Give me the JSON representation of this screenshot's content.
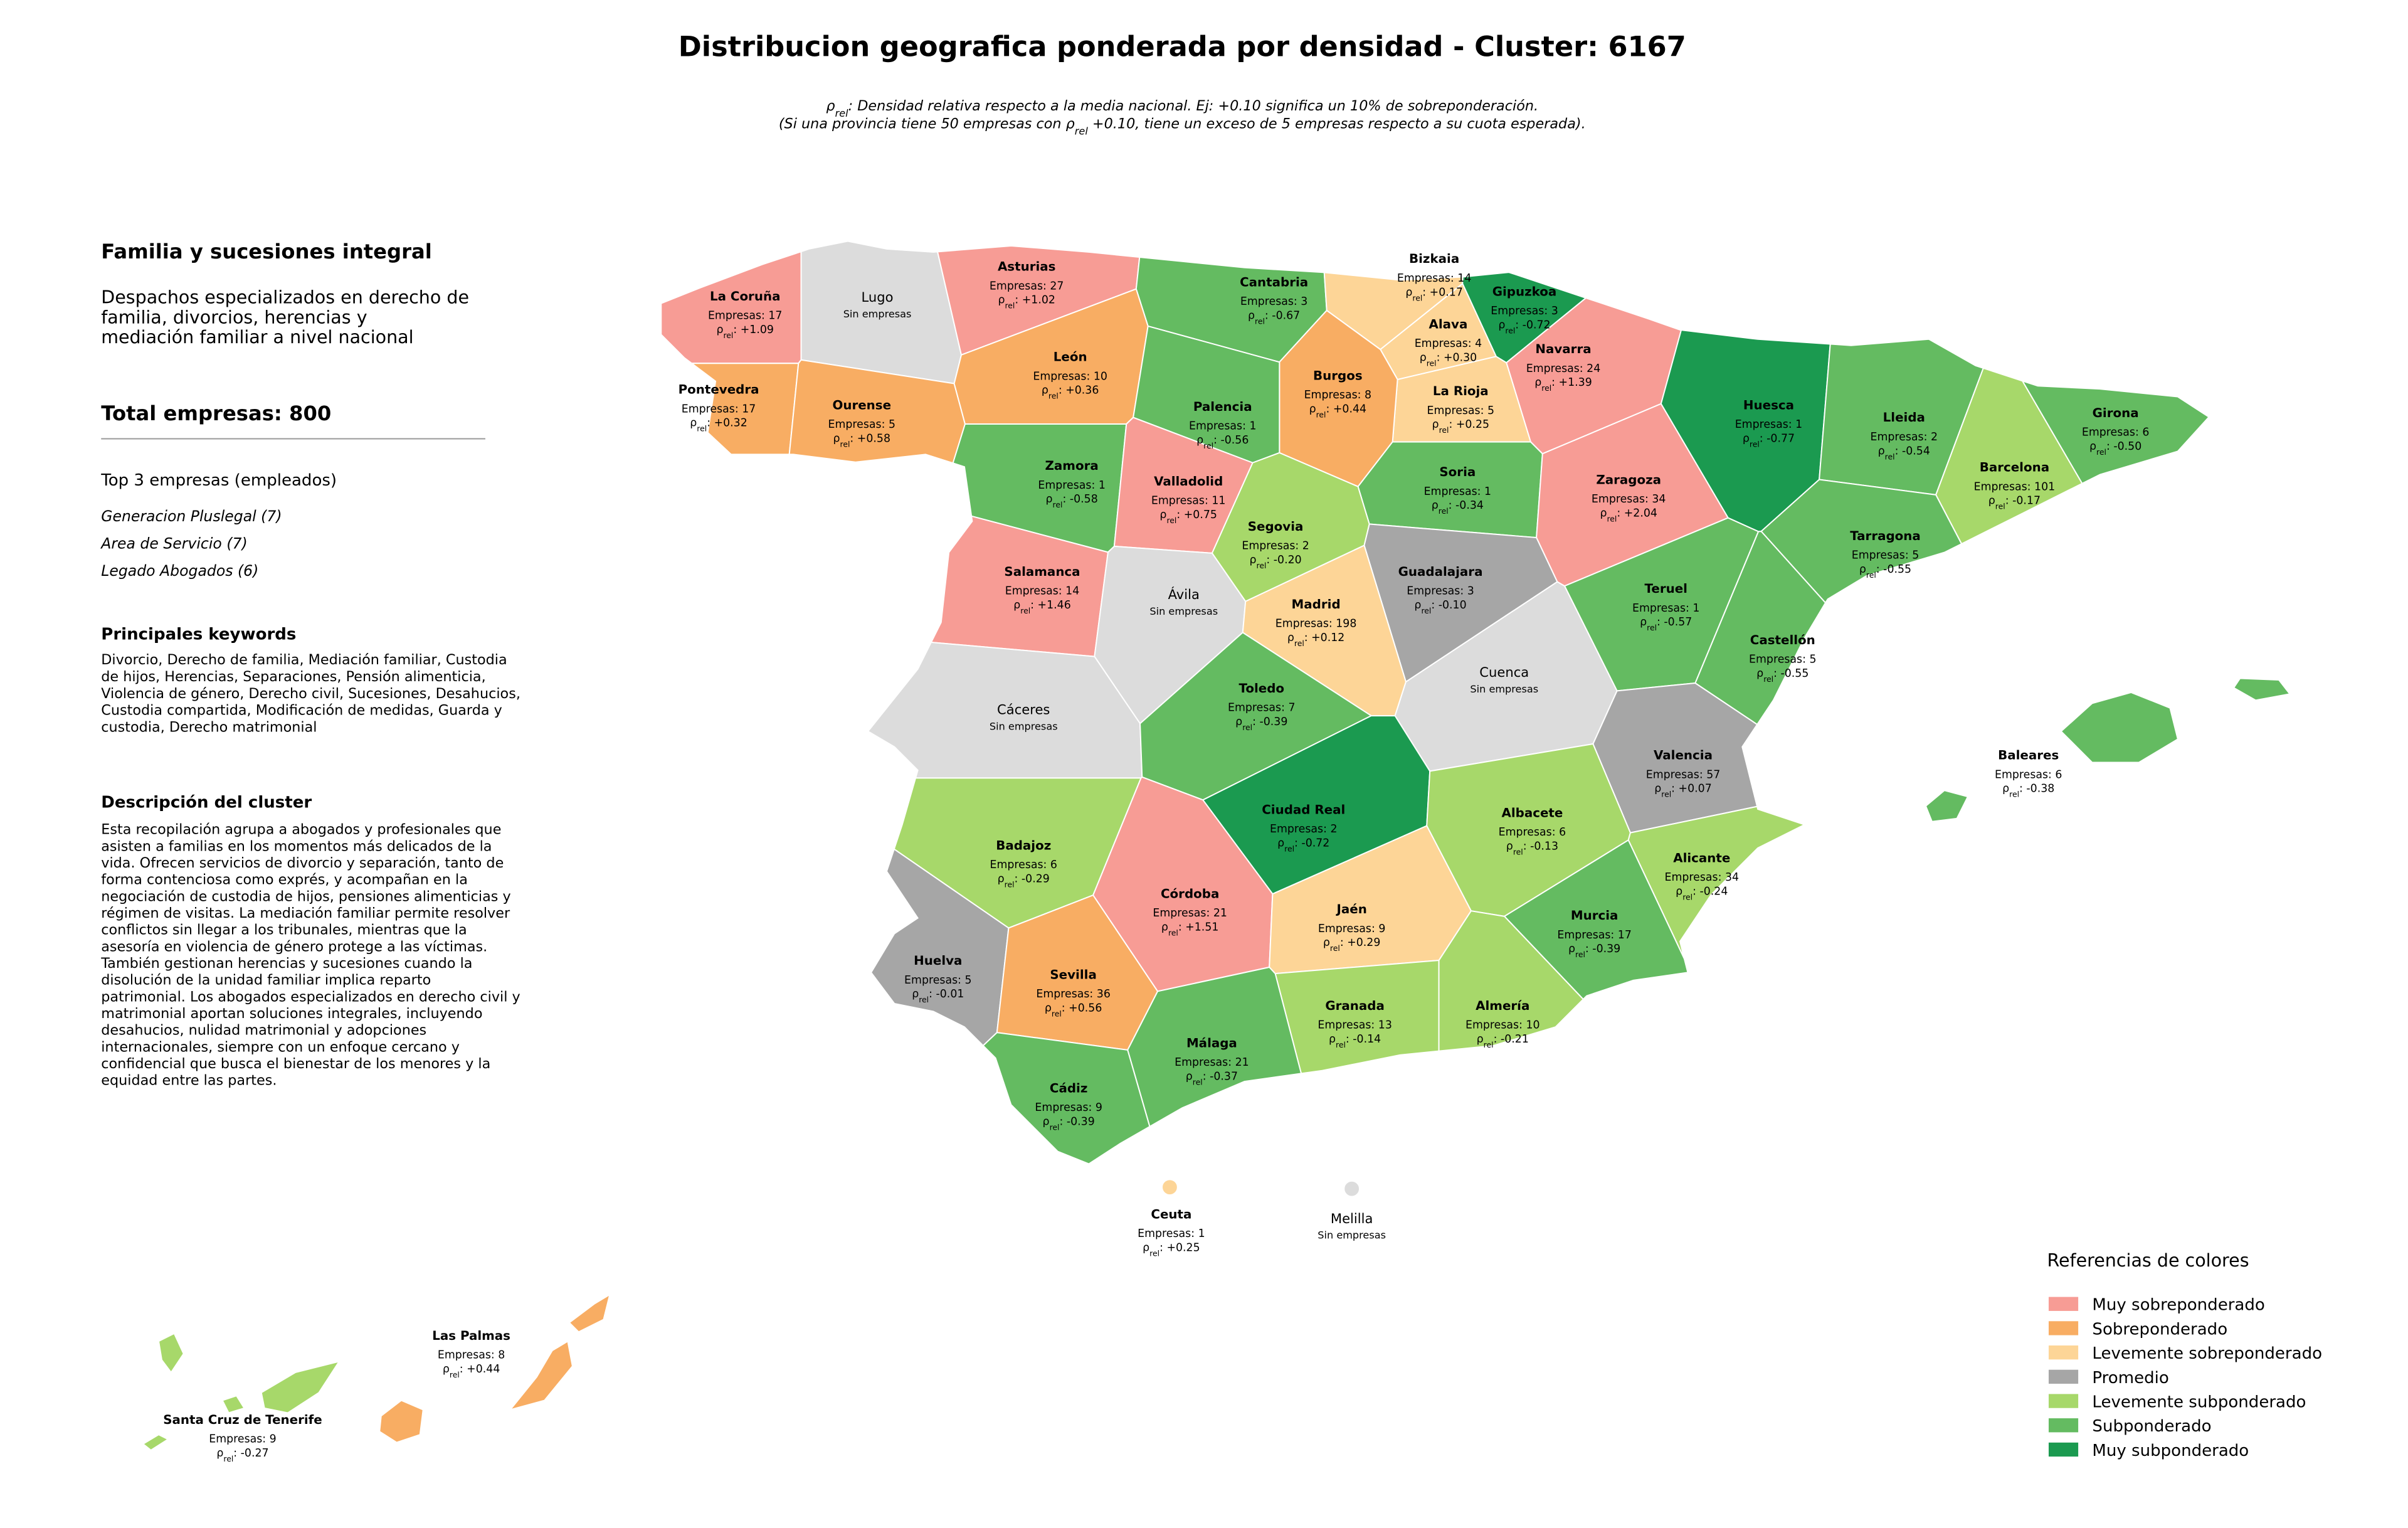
{
  "title": "Distribucion geografica ponderada por densidad - Cluster: 6167",
  "subtitle": [
    [
      "ρ",
      "rel",
      ": Densidad relativa respecto a la media nacional. Ej: +0.10 significa un 10% de sobreponderación."
    ],
    [
      "(Si una provincia tiene 50 empresas con ρ",
      "rel",
      " +0.10, tiene un exceso de 5 empresas respecto a su cuota esperada)."
    ]
  ],
  "panel": {
    "heading": "Familia y sucesiones integral",
    "summary": [
      "Despachos especializados en derecho de",
      "familia, divorcios, herencias y",
      "mediación familiar a nivel nacional"
    ],
    "total": "Total empresas: 800",
    "top_title": "Top 3 empresas (empleados)",
    "top": [
      "Generacion Pluslegal (7)",
      "Area de Servicio (7)",
      "Legado Abogados (6)"
    ],
    "keywords_title": "Principales keywords",
    "keywords": [
      "Divorcio, Derecho de familia, Mediación familiar, Custodia",
      "de hijos, Herencias, Separaciones, Pensión alimenticia,",
      "Violencia de género, Derecho civil, Sucesiones, Desahucios,",
      "Custodia compartida, Modificación de medidas, Guarda y",
      "custodia, Derecho matrimonial"
    ],
    "description_title": "Descripción del cluster",
    "description": [
      "Esta recopilación agrupa a abogados y profesionales que",
      "asisten a familias en los momentos más delicados de la",
      "vida. Ofrecen servicios de divorcio y separación, tanto de",
      "forma contenciosa como exprés, y acompañan en la",
      "negociación de custodia de hijos, pensiones alimenticias y",
      "régimen de visitas. La mediación familiar permite resolver",
      "conflictos sin llegar a los tribunales, mientras que la",
      "asesoría en violencia de género protege a las víctimas.",
      "También gestionan herencias y sucesiones cuando la",
      "disolución de la unidad familiar implica reparto",
      "patrimonial. Los abogados especializados en derecho civil y",
      "matrimonial aportan soluciones integrales, incluyendo",
      "desahucios, nulidad matrimonial y adopciones",
      "internacionales, siempre con un enfoque cercano y",
      "confidencial que busca el bienestar de los menores y la",
      "equidad entre las partes."
    ]
  },
  "legend": {
    "title": "Referencias de colores",
    "items": [
      {
        "label": "Muy sobreponderado",
        "color": "#f79c95"
      },
      {
        "label": "Sobreponderado",
        "color": "#f8ad63"
      },
      {
        "label": "Levemente sobreponderado",
        "color": "#fdd597"
      },
      {
        "label": "Promedio",
        "color": "#a6a6a6"
      },
      {
        "label": "Levemente subponderado",
        "color": "#a7d86a"
      },
      {
        "label": "Subponderado",
        "color": "#64bb61"
      },
      {
        "label": "Muy subponderado",
        "color": "#1b9a50"
      }
    ]
  },
  "map": {
    "rho_symbol": "ρ",
    "rho_subscript": "rel",
    "provinces": [
      {
        "name": "La Coruña",
        "empresas": "Empresas: 17",
        "rho": ": +1.09",
        "level": "Muy sobreponderado"
      },
      {
        "name": "Lugo",
        "note": "Sin empresas"
      },
      {
        "name": "Asturias",
        "empresas": "Empresas: 27",
        "rho": ": +1.02",
        "level": "Muy sobreponderado"
      },
      {
        "name": "Cantabria",
        "empresas": "Empresas: 3",
        "rho": ": -0.67",
        "level": "Subponderado"
      },
      {
        "name": "Bizkaia",
        "empresas": "Empresas: 14",
        "rho": ": +0.17",
        "level": "Levemente sobreponderado"
      },
      {
        "name": "Gipuzkoa",
        "empresas": "Empresas: 3",
        "rho": ": -0.72",
        "level": "Muy subponderado"
      },
      {
        "name": "Alava",
        "empresas": "Empresas: 4",
        "rho": ": +0.30",
        "level": "Levemente sobreponderado"
      },
      {
        "name": "Navarra",
        "empresas": "Empresas: 24",
        "rho": ": +1.39",
        "level": "Muy sobreponderado"
      },
      {
        "name": "La Rioja",
        "empresas": "Empresas: 5",
        "rho": ": +0.25",
        "level": "Levemente sobreponderado"
      },
      {
        "name": "Pontevedra",
        "empresas": "Empresas: 17",
        "rho": ": +0.32",
        "level": "Sobreponderado"
      },
      {
        "name": "Ourense",
        "empresas": "Empresas: 5",
        "rho": ": +0.58",
        "level": "Sobreponderado"
      },
      {
        "name": "León",
        "empresas": "Empresas: 10",
        "rho": ": +0.36",
        "level": "Sobreponderado"
      },
      {
        "name": "Burgos",
        "empresas": "Empresas: 8",
        "rho": ": +0.44",
        "level": "Sobreponderado"
      },
      {
        "name": "Palencia",
        "empresas": "Empresas: 1",
        "rho": ": -0.56",
        "level": "Subponderado"
      },
      {
        "name": "Huesca",
        "empresas": "Empresas: 1",
        "rho": ": -0.77",
        "level": "Muy subponderado"
      },
      {
        "name": "Lleida",
        "empresas": "Empresas: 2",
        "rho": ": -0.54",
        "level": "Subponderado"
      },
      {
        "name": "Girona",
        "empresas": "Empresas: 6",
        "rho": ": -0.50",
        "level": "Subponderado"
      },
      {
        "name": "Barcelona",
        "empresas": "Empresas: 101",
        "rho": ": -0.17",
        "level": "Levemente subponderado"
      },
      {
        "name": "Zamora",
        "empresas": "Empresas: 1",
        "rho": ": -0.58",
        "level": "Subponderado"
      },
      {
        "name": "Valladolid",
        "empresas": "Empresas: 11",
        "rho": ": +0.75",
        "level": "Muy sobreponderado"
      },
      {
        "name": "Soria",
        "empresas": "Empresas: 1",
        "rho": ": -0.34",
        "level": "Subponderado"
      },
      {
        "name": "Zaragoza",
        "empresas": "Empresas: 34",
        "rho": ": +2.04",
        "level": "Muy sobreponderado"
      },
      {
        "name": "Tarragona",
        "empresas": "Empresas: 5",
        "rho": ": -0.55",
        "level": "Subponderado"
      },
      {
        "name": "Segovia",
        "empresas": "Empresas: 2",
        "rho": ": -0.20",
        "level": "Levemente subponderado"
      },
      {
        "name": "Guadalajara",
        "empresas": "Empresas: 3",
        "rho": ": -0.10",
        "level": "Promedio"
      },
      {
        "name": "Salamanca",
        "empresas": "Empresas: 14",
        "rho": ": +1.46",
        "level": "Muy sobreponderado"
      },
      {
        "name": "Ávila",
        "note": "Sin empresas"
      },
      {
        "name": "Madrid",
        "empresas": "Empresas: 198",
        "rho": ": +0.12",
        "level": "Levemente sobreponderado"
      },
      {
        "name": "Teruel",
        "empresas": "Empresas: 1",
        "rho": ": -0.57",
        "level": "Subponderado"
      },
      {
        "name": "Cáceres",
        "note": "Sin empresas"
      },
      {
        "name": "Cuenca",
        "note": "Sin empresas"
      },
      {
        "name": "Toledo",
        "empresas": "Empresas: 7",
        "rho": ": -0.39",
        "level": "Subponderado"
      },
      {
        "name": "Castellón",
        "empresas": "Empresas: 5",
        "rho": ": -0.55",
        "level": "Subponderado"
      },
      {
        "name": "Valencia",
        "empresas": "Empresas: 57",
        "rho": ": +0.07",
        "level": "Promedio"
      },
      {
        "name": "Ciudad Real",
        "empresas": "Empresas: 2",
        "rho": ": -0.72",
        "level": "Muy subponderado"
      },
      {
        "name": "Albacete",
        "empresas": "Empresas: 6",
        "rho": ": -0.13",
        "level": "Levemente subponderado"
      },
      {
        "name": "Badajoz",
        "empresas": "Empresas: 6",
        "rho": ": -0.29",
        "level": "Levemente subponderado"
      },
      {
        "name": "Alicante",
        "empresas": "Empresas: 34",
        "rho": ": -0.24",
        "level": "Levemente subponderado"
      },
      {
        "name": "Córdoba",
        "empresas": "Empresas: 21",
        "rho": ": +1.51",
        "level": "Muy sobreponderado"
      },
      {
        "name": "Jaén",
        "empresas": "Empresas: 9",
        "rho": ": +0.29",
        "level": "Levemente sobreponderado"
      },
      {
        "name": "Murcia",
        "empresas": "Empresas: 17",
        "rho": ": -0.39",
        "level": "Subponderado"
      },
      {
        "name": "Huelva",
        "empresas": "Empresas: 5",
        "rho": ": -0.01",
        "level": "Promedio"
      },
      {
        "name": "Sevilla",
        "empresas": "Empresas: 36",
        "rho": ": +0.56",
        "level": "Sobreponderado"
      },
      {
        "name": "Granada",
        "empresas": "Empresas: 13",
        "rho": ": -0.14",
        "level": "Levemente subponderado"
      },
      {
        "name": "Almería",
        "empresas": "Empresas: 10",
        "rho": ": -0.21",
        "level": "Levemente subponderado"
      },
      {
        "name": "Málaga",
        "empresas": "Empresas: 21",
        "rho": ": -0.37",
        "level": "Subponderado"
      },
      {
        "name": "Cádiz",
        "empresas": "Empresas: 9",
        "rho": ": -0.39",
        "level": "Subponderado"
      },
      {
        "name": "Baleares",
        "empresas": "Empresas: 6",
        "rho": ": -0.38",
        "level": "Subponderado"
      },
      {
        "name": "Ceuta",
        "empresas": "Empresas: 1",
        "rho": ": +0.25",
        "level": "Levemente sobreponderado"
      },
      {
        "name": "Melilla",
        "note": "Sin empresas"
      },
      {
        "name": "Las Palmas",
        "empresas": "Empresas: 8",
        "rho": ": +0.44",
        "level": "Sobreponderado"
      },
      {
        "name": "Santa Cruz de Tenerife",
        "empresas": "Empresas: 9",
        "rho": ": -0.27",
        "level": "Levemente subponderado"
      }
    ]
  }
}
